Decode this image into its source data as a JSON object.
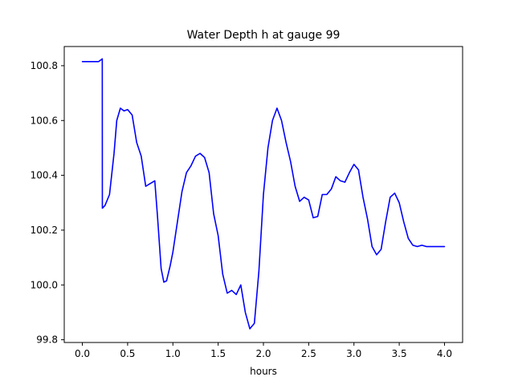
{
  "chart_data": {
    "type": "line",
    "title": "Water Depth h at gauge 99",
    "xlabel": "hours",
    "ylabel": "",
    "xlim": [
      -0.2,
      4.2
    ],
    "ylim": [
      99.79,
      100.87
    ],
    "x_ticks": [
      0.0,
      0.5,
      1.0,
      1.5,
      2.0,
      2.5,
      3.0,
      3.5,
      4.0
    ],
    "x_tick_labels": [
      "0.0",
      "0.5",
      "1.0",
      "1.5",
      "2.0",
      "2.5",
      "3.0",
      "3.5",
      "4.0"
    ],
    "y_ticks": [
      99.8,
      100.0,
      100.2,
      100.4,
      100.6,
      100.8
    ],
    "y_tick_labels": [
      "99.8",
      "100.0",
      "100.2",
      "100.4",
      "100.6",
      "100.8"
    ],
    "grid": false,
    "legend": "none",
    "colors": {
      "line": "#0000ff",
      "axes": "#000000",
      "background": "#ffffff"
    },
    "series": [
      {
        "x": [
          0.0,
          0.18,
          0.22,
          0.221,
          0.25,
          0.3,
          0.35,
          0.38,
          0.42,
          0.46,
          0.5,
          0.55,
          0.6,
          0.65,
          0.7,
          0.75,
          0.8,
          0.83,
          0.87,
          0.9,
          0.93,
          0.97,
          1.0,
          1.05,
          1.1,
          1.15,
          1.2,
          1.25,
          1.3,
          1.35,
          1.4,
          1.45,
          1.5,
          1.55,
          1.6,
          1.65,
          1.7,
          1.75,
          1.8,
          1.85,
          1.9,
          1.95,
          2.0,
          2.05,
          2.1,
          2.15,
          2.2,
          2.25,
          2.3,
          2.35,
          2.4,
          2.45,
          2.5,
          2.55,
          2.6,
          2.65,
          2.7,
          2.75,
          2.8,
          2.85,
          2.9,
          2.95,
          3.0,
          3.05,
          3.1,
          3.15,
          3.2,
          3.25,
          3.3,
          3.35,
          3.4,
          3.45,
          3.5,
          3.55,
          3.6,
          3.65,
          3.7,
          3.75,
          3.8,
          3.85,
          3.9,
          3.95,
          4.0
        ],
        "y": [
          100.815,
          100.815,
          100.825,
          100.28,
          100.29,
          100.33,
          100.48,
          100.6,
          100.645,
          100.635,
          100.64,
          100.62,
          100.52,
          100.47,
          100.36,
          100.37,
          100.38,
          100.25,
          100.06,
          100.01,
          100.015,
          100.07,
          100.12,
          100.23,
          100.34,
          100.41,
          100.435,
          100.47,
          100.48,
          100.465,
          100.41,
          100.26,
          100.18,
          100.04,
          99.97,
          99.98,
          99.965,
          100.0,
          99.9,
          99.84,
          99.86,
          100.05,
          100.33,
          100.5,
          100.6,
          100.645,
          100.6,
          100.52,
          100.45,
          100.36,
          100.305,
          100.32,
          100.31,
          100.245,
          100.25,
          100.33,
          100.33,
          100.35,
          100.395,
          100.38,
          100.375,
          100.41,
          100.44,
          100.42,
          100.32,
          100.24,
          100.14,
          100.11,
          100.13,
          100.23,
          100.32,
          100.335,
          100.3,
          100.23,
          100.17,
          100.145,
          100.14,
          100.145,
          100.14,
          100.14,
          100.14,
          100.14,
          100.14
        ]
      }
    ]
  }
}
